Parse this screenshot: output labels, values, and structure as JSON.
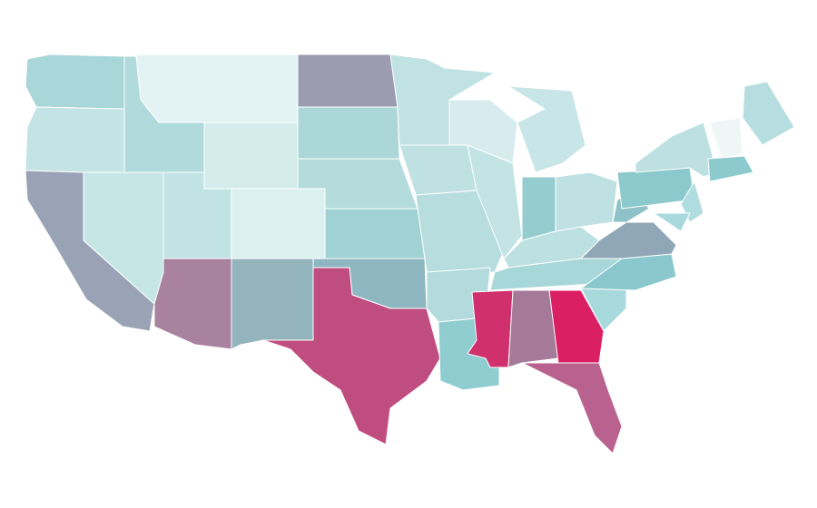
{
  "map": {
    "fills": [
      "#a9d6d8",
      "#c4e3e5",
      "#9aa3b5",
      "#c6e6e6",
      "#b0dadb",
      "#e3f3f4",
      "#d4ecec",
      "#c2e3e4",
      "#a8829f",
      "#dcf0f1",
      "#93b3bd",
      "#9c9cb0",
      "#acd7d8",
      "#b4dcdd",
      "#a0d1d3",
      "#8fb7c1",
      "#c04d80",
      "#c1e2e3",
      "#c0e1e2",
      "#b8dddf",
      "#b3dbdd",
      "#8fcdd0",
      "#d8ecef",
      "#c4e3e4",
      "#c8e5e7",
      "#95ccd0",
      "#c0e1e3",
      "#bde0e1",
      "#a8d7da",
      "#d0306e",
      "#a47a98",
      "#db1f63",
      "#b9628f",
      "#a8d9dc",
      "#8ac8cd",
      "#8fa7b6",
      "#8fc2c8",
      "#8cc9cc",
      "#bde1e3",
      "#b6dee0",
      "#eef6f6",
      "#8ccacd",
      "#b0dde0",
      "#a7d9dd"
    ]
  }
}
